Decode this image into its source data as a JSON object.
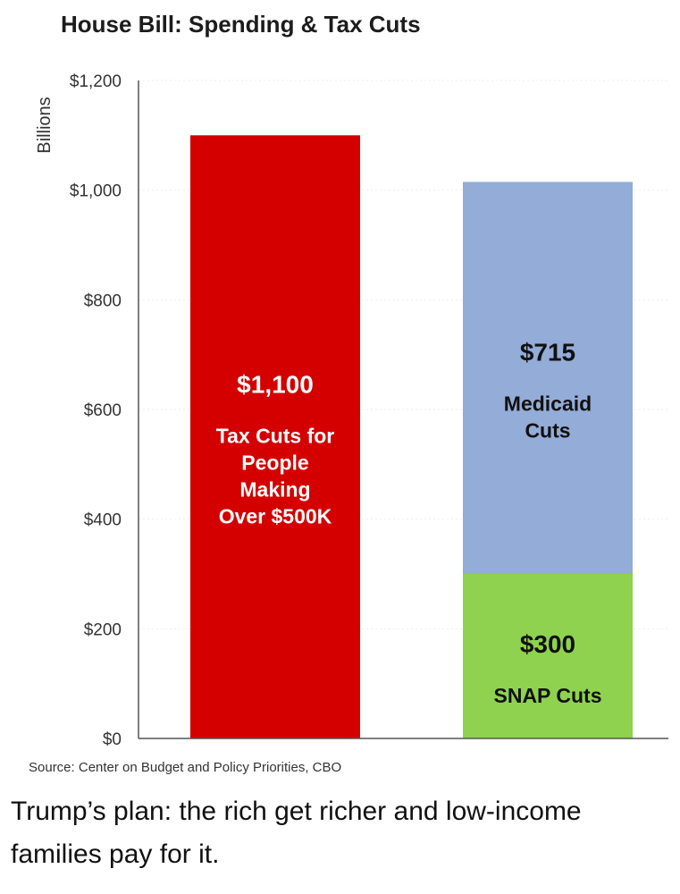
{
  "chart_data": {
    "type": "bar",
    "title": "House Bill: Spending & Tax Cuts",
    "ylabel": "Billions",
    "ylim": [
      0,
      1200
    ],
    "yticks": [
      {
        "value": 0,
        "label": "$0"
      },
      {
        "value": 200,
        "label": "$200"
      },
      {
        "value": 400,
        "label": "$400"
      },
      {
        "value": 600,
        "label": "$600"
      },
      {
        "value": 800,
        "label": "$800"
      },
      {
        "value": 1000,
        "label": "$1,000"
      },
      {
        "value": 1200,
        "label": "$1,200"
      }
    ],
    "grid": true,
    "bars": [
      {
        "segments": [
          {
            "value": 1100,
            "label_value": "$1,100",
            "label_lines": [
              "Tax Cuts for",
              "People",
              "Making",
              "Over $500K"
            ],
            "color": "#d40000"
          }
        ]
      },
      {
        "segments": [
          {
            "value": 300,
            "label_value": "$300",
            "label_lines": [
              "SNAP Cuts"
            ],
            "color": "#8fd24f"
          },
          {
            "value": 715,
            "label_value": "$715",
            "label_lines": [
              "Medicaid",
              "Cuts"
            ],
            "color": "#93acd8"
          }
        ]
      }
    ],
    "source": "Source: Center on Budget and Policy Priorities, CBO"
  },
  "caption": "Trump’s plan: the rich get richer and low-income families pay for it."
}
